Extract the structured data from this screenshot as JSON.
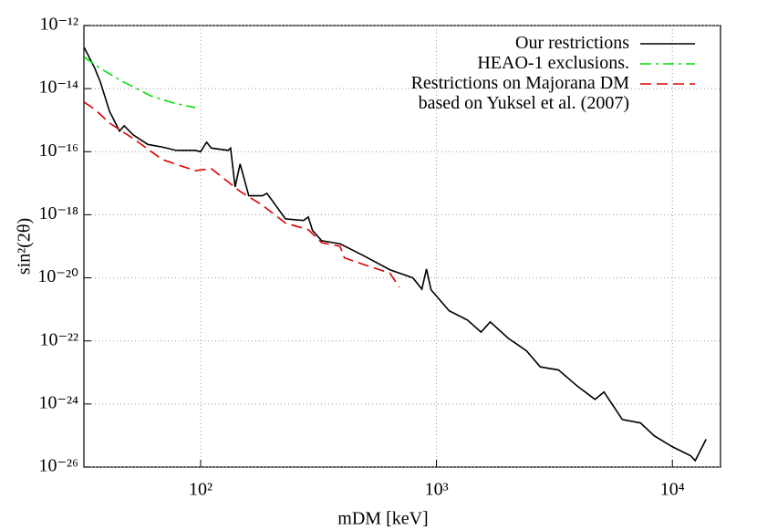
{
  "chart_data": {
    "type": "line",
    "x_label": "mDM [keV]",
    "y_label": "sin²(2θ)",
    "xscale": "log",
    "yscale": "log",
    "grid": true,
    "legend": "top-right",
    "xlim": [
      32,
      16000
    ],
    "ylim": [
      1e-26,
      1e-12
    ],
    "xticks": [
      {
        "value": 100,
        "label": "10²"
      },
      {
        "value": 1000,
        "label": "10³"
      },
      {
        "value": 10000,
        "label": "10⁴"
      }
    ],
    "yticks": [
      {
        "value": 1e-12,
        "label": "10⁻¹²"
      },
      {
        "value": 1e-14,
        "label": "10⁻¹⁴"
      },
      {
        "value": 1e-16,
        "label": "10⁻¹⁶"
      },
      {
        "value": 1e-18,
        "label": "10⁻¹⁸"
      },
      {
        "value": 1e-20,
        "label": "10⁻²⁰"
      },
      {
        "value": 1e-22,
        "label": "10⁻²²"
      },
      {
        "value": 1e-24,
        "label": "10⁻²⁴"
      },
      {
        "value": 1e-26,
        "label": "10⁻²⁶"
      }
    ],
    "series": [
      {
        "name": "Our restrictions",
        "color": "#000000",
        "dash": "solid",
        "x": [
          32.1,
          35.6,
          37.6,
          41.1,
          45.3,
          47.4,
          51.8,
          59.7,
          68.9,
          78.7,
          94.8,
          100,
          106,
          111,
          131,
          134,
          140,
          147,
          160,
          183,
          191,
          229,
          273,
          286,
          298,
          326,
          390,
          487,
          635,
          794,
          867,
          907,
          948,
          1132,
          1352,
          1545,
          1690,
          2018,
          2207,
          2410,
          2754,
          3289,
          3935,
          4699,
          5129,
          6138,
          7328,
          8375,
          10000,
          11940,
          12500,
          13900
        ],
        "values": [
          2e-13,
          4.4e-14,
          1.6e-14,
          1.9e-15,
          4.5e-16,
          6.6e-16,
          3.4e-16,
          1.7e-16,
          1.4e-16,
          1.1e-16,
          1.1e-16,
          1e-16,
          2e-16,
          1.3e-16,
          1.1e-16,
          1.3e-16,
          7.6e-18,
          4.1e-17,
          4e-18,
          4e-18,
          4.8e-18,
          7.4e-19,
          6.6e-19,
          8.5e-19,
          3.2e-19,
          1.5e-19,
          1.2e-19,
          5.2e-20,
          1.8e-20,
          1e-20,
          4.4e-21,
          1.9e-20,
          4.2e-21,
          9e-22,
          4.6e-22,
          1.9e-22,
          4e-22,
          1.2e-22,
          7.6e-23,
          4.8e-23,
          1.5e-23,
          1.2e-23,
          3.8e-24,
          1.4e-24,
          2.4e-24,
          3.2e-25,
          2.5e-25,
          9.8e-26,
          4.4e-26,
          2.3e-26,
          1.6e-26,
          7.6e-26
        ]
      },
      {
        "name": "HEAO-1 exclusions.",
        "color": "#00dd00",
        "dash": "dashdot",
        "x": [
          32.1,
          37.6,
          45.3,
          61.4,
          76.6,
          94.8
        ],
        "values": [
          1e-13,
          4.4e-14,
          1.9e-14,
          5.9e-15,
          3.5e-15,
          2.5e-15
        ]
      },
      {
        "name": "Restrictions on Majorana DM\nbased on Yuksel et al. (2007)",
        "color": "#dd0000",
        "dash": "dashed",
        "x": [
          32.1,
          35.6,
          41.1,
          51.8,
          68.9,
          94.8,
          111,
          147,
          183,
          229,
          286,
          326,
          390,
          407,
          487,
          635,
          695
        ],
        "values": [
          3.7e-15,
          2.2e-15,
          8.1e-16,
          2.6e-16,
          5.6e-17,
          2.5e-17,
          2.9e-17,
          5.5e-18,
          2e-18,
          5.4e-19,
          3.4e-19,
          1.3e-19,
          1e-19,
          4.3e-20,
          2.7e-20,
          1.4e-20,
          5.1e-21
        ]
      }
    ]
  }
}
